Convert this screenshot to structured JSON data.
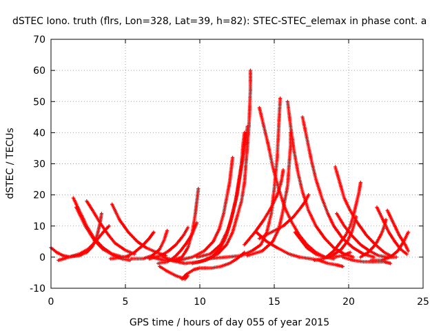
{
  "chart_data": {
    "type": "scatter",
    "title": "dSTEC Iono. truth (flrs, Lon=328, Lat=39, h=82): STEC-STEC_elemax in phase cont. a",
    "xlabel": "GPS time / hours of day 055 of year 2015",
    "ylabel": "dSTEC  / TECUs",
    "xlim": [
      0,
      25
    ],
    "ylim": [
      -10,
      70
    ],
    "xticks": [
      0,
      5,
      10,
      15,
      20,
      25
    ],
    "yticks": [
      -10,
      0,
      10,
      20,
      30,
      40,
      50,
      60,
      70
    ],
    "grid": true,
    "marker": "+",
    "color": "#ff0000",
    "series": [
      {
        "points": [
          [
            0,
            3
          ],
          [
            0.4,
            1.5
          ],
          [
            0.8,
            0.5
          ],
          [
            1.2,
            0.1
          ],
          [
            1.6,
            0.3
          ],
          [
            2.0,
            0.6
          ]
        ]
      },
      {
        "points": [
          [
            1.5,
            19
          ],
          [
            1.9,
            15
          ],
          [
            2.4,
            10
          ],
          [
            2.9,
            6
          ],
          [
            3.5,
            3
          ],
          [
            4.1,
            1
          ],
          [
            4.7,
            0.2
          ],
          [
            5.2,
            0
          ]
        ]
      },
      {
        "points": [
          [
            2.4,
            18
          ],
          [
            2.8,
            15
          ],
          [
            3.3,
            11
          ],
          [
            3.8,
            7.5
          ],
          [
            4.3,
            4.5
          ],
          [
            5.0,
            2.2
          ],
          [
            5.6,
            1
          ]
        ]
      },
      {
        "points": [
          [
            4.1,
            17
          ],
          [
            4.6,
            12
          ],
          [
            5.2,
            8
          ],
          [
            5.8,
            5
          ],
          [
            6.4,
            3
          ],
          [
            7.1,
            1.5
          ],
          [
            7.7,
            0.5
          ]
        ]
      },
      {
        "points": [
          [
            1.7,
            16
          ],
          [
            2.3,
            10
          ],
          [
            2.9,
            5.5
          ],
          [
            3.5,
            2.5
          ],
          [
            4.2,
            0.6
          ],
          [
            4.8,
            -0.6
          ],
          [
            5.3,
            -1
          ]
        ]
      },
      {
        "points": [
          [
            0.5,
            -1
          ],
          [
            1.2,
            0
          ],
          [
            1.9,
            1
          ],
          [
            2.5,
            2.6
          ],
          [
            3.0,
            5
          ],
          [
            3.5,
            8
          ],
          [
            3.9,
            10
          ]
        ]
      },
      {
        "points": [
          [
            1.8,
            0.5
          ],
          [
            2.4,
            1.5
          ],
          [
            2.8,
            3.5
          ],
          [
            3.1,
            7
          ],
          [
            3.3,
            11
          ],
          [
            3.4,
            14
          ]
        ]
      },
      {
        "points": [
          [
            4.0,
            -0.5
          ],
          [
            5.0,
            0
          ],
          [
            5.6,
            1.5
          ],
          [
            6.1,
            3.5
          ],
          [
            6.6,
            6
          ],
          [
            6.9,
            8
          ]
        ]
      },
      {
        "points": [
          [
            5.4,
            -0.5
          ],
          [
            6.2,
            -0.5
          ],
          [
            6.8,
            0.5
          ],
          [
            7.3,
            2.5
          ],
          [
            7.6,
            5.5
          ],
          [
            7.8,
            8.5
          ]
        ]
      },
      {
        "points": [
          [
            6.6,
            -0.5
          ],
          [
            7.4,
            0.5
          ],
          [
            7.9,
            2
          ],
          [
            8.4,
            4
          ],
          [
            8.9,
            7
          ],
          [
            9.2,
            9.5
          ]
        ]
      },
      {
        "points": [
          [
            7.2,
            -2
          ],
          [
            7.8,
            -1.5
          ],
          [
            8.3,
            0
          ],
          [
            8.7,
            2
          ],
          [
            9.1,
            4.5
          ],
          [
            9.5,
            7.5
          ],
          [
            9.8,
            11
          ]
        ]
      },
      {
        "points": [
          [
            7.5,
            0
          ],
          [
            8.2,
            -1
          ],
          [
            8.8,
            0
          ],
          [
            9.2,
            3
          ],
          [
            9.5,
            8
          ],
          [
            9.7,
            14
          ],
          [
            9.8,
            18
          ],
          [
            9.9,
            22
          ]
        ]
      },
      {
        "points": [
          [
            7.3,
            -3
          ],
          [
            7.8,
            -4.5
          ],
          [
            8.4,
            -6
          ],
          [
            9.0,
            -7
          ],
          [
            9.2,
            -6
          ]
        ]
      },
      {
        "points": [
          [
            8.8,
            -7
          ],
          [
            9.1,
            -5.5
          ],
          [
            9.6,
            -4
          ],
          [
            10.0,
            -3.5
          ],
          [
            10.8,
            -3.5
          ],
          [
            11.4,
            -3
          ],
          [
            12.0,
            -2
          ],
          [
            12.5,
            -0.5
          ],
          [
            13.0,
            1.5
          ]
        ]
      },
      {
        "points": [
          [
            6.8,
            0
          ],
          [
            7.6,
            -1
          ],
          [
            8.6,
            -1
          ],
          [
            9.5,
            0
          ],
          [
            10.3,
            2
          ],
          [
            10.9,
            5
          ],
          [
            11.3,
            9
          ],
          [
            11.6,
            14
          ],
          [
            11.8,
            19
          ],
          [
            12.0,
            24
          ],
          [
            12.1,
            28
          ],
          [
            12.2,
            32
          ]
        ]
      },
      {
        "points": [
          [
            8.0,
            -1
          ],
          [
            9.0,
            -2
          ],
          [
            10.0,
            -1.5
          ],
          [
            10.8,
            0
          ],
          [
            11.4,
            3
          ],
          [
            11.8,
            7
          ],
          [
            12.1,
            12
          ],
          [
            12.4,
            18
          ],
          [
            12.6,
            24
          ],
          [
            12.8,
            30
          ],
          [
            12.9,
            36
          ],
          [
            13.0,
            40
          ]
        ]
      },
      {
        "points": [
          [
            9.5,
            -2
          ],
          [
            10.4,
            -1
          ],
          [
            11.2,
            1
          ],
          [
            11.8,
            4
          ],
          [
            12.2,
            8
          ],
          [
            12.5,
            13
          ],
          [
            12.8,
            18
          ],
          [
            13.0,
            24
          ],
          [
            13.1,
            30
          ],
          [
            13.2,
            36
          ],
          [
            13.3,
            42
          ],
          [
            13.35,
            48
          ],
          [
            13.4,
            54
          ],
          [
            13.4,
            60
          ]
        ]
      },
      {
        "points": [
          [
            9.8,
            0
          ],
          [
            10.7,
            1
          ],
          [
            11.4,
            4
          ],
          [
            11.9,
            9
          ],
          [
            12.2,
            14
          ],
          [
            12.5,
            20
          ],
          [
            12.7,
            26
          ],
          [
            12.9,
            32
          ],
          [
            13.1,
            38
          ],
          [
            13.2,
            42
          ]
        ]
      },
      {
        "points": [
          [
            14.0,
            48
          ],
          [
            14.3,
            42
          ],
          [
            14.6,
            36
          ],
          [
            14.9,
            29
          ],
          [
            15.3,
            22
          ],
          [
            15.7,
            16
          ],
          [
            16.2,
            11
          ],
          [
            16.7,
            7
          ],
          [
            17.2,
            4
          ],
          [
            17.8,
            1.5
          ],
          [
            18.4,
            0
          ],
          [
            19.0,
            -0.5
          ]
        ]
      },
      {
        "points": [
          [
            10.5,
            -0.5
          ],
          [
            11.8,
            0
          ],
          [
            12.8,
            0.5
          ],
          [
            13.5,
            2
          ],
          [
            14.1,
            4
          ],
          [
            14.5,
            8
          ],
          [
            14.8,
            14
          ],
          [
            15.0,
            22
          ],
          [
            15.2,
            32
          ],
          [
            15.3,
            42
          ],
          [
            15.4,
            51
          ]
        ]
      },
      {
        "points": [
          [
            15.9,
            50
          ],
          [
            16.1,
            42
          ],
          [
            16.3,
            35
          ],
          [
            16.6,
            27
          ],
          [
            16.9,
            21
          ],
          [
            17.3,
            15
          ],
          [
            17.8,
            10
          ],
          [
            18.4,
            6
          ],
          [
            19.0,
            3
          ],
          [
            19.7,
            1
          ],
          [
            20.3,
            0
          ]
        ]
      },
      {
        "points": [
          [
            13.2,
            0.5
          ],
          [
            14.2,
            2
          ],
          [
            14.9,
            5
          ],
          [
            15.3,
            9
          ],
          [
            15.5,
            13
          ],
          [
            15.7,
            18
          ],
          [
            15.9,
            23
          ],
          [
            16.0,
            30
          ],
          [
            16.1,
            36
          ],
          [
            16.1,
            40
          ]
        ]
      },
      {
        "points": [
          [
            16.9,
            45
          ],
          [
            17.2,
            38
          ],
          [
            17.5,
            31
          ],
          [
            17.8,
            25
          ],
          [
            18.2,
            19
          ],
          [
            18.6,
            14
          ],
          [
            19.0,
            10
          ],
          [
            19.6,
            6
          ],
          [
            20.3,
            3
          ],
          [
            21.0,
            1
          ],
          [
            21.7,
            0
          ]
        ]
      },
      {
        "points": [
          [
            13.0,
            4
          ],
          [
            13.7,
            8
          ],
          [
            14.3,
            12
          ],
          [
            14.8,
            16
          ],
          [
            15.2,
            20
          ],
          [
            15.4,
            23
          ],
          [
            15.5,
            25
          ],
          [
            15.6,
            28
          ]
        ]
      },
      {
        "points": [
          [
            14.0,
            6
          ],
          [
            14.8,
            8
          ],
          [
            15.6,
            10
          ],
          [
            16.3,
            13
          ],
          [
            16.8,
            16
          ],
          [
            17.1,
            18
          ],
          [
            17.3,
            20
          ]
        ]
      },
      {
        "points": [
          [
            13.8,
            8
          ],
          [
            14.5,
            5
          ],
          [
            15.2,
            3
          ],
          [
            16.0,
            1
          ],
          [
            16.7,
            0
          ],
          [
            17.4,
            -0.5
          ],
          [
            18.0,
            -1
          ],
          [
            18.6,
            -2
          ],
          [
            19.2,
            -2.5
          ],
          [
            19.6,
            -3
          ]
        ]
      },
      {
        "points": [
          [
            16.4,
            8
          ],
          [
            16.8,
            5.5
          ],
          [
            17.2,
            3
          ],
          [
            17.8,
            1
          ],
          [
            18.4,
            0
          ],
          [
            19.0,
            0
          ],
          [
            19.6,
            0.5
          ],
          [
            20.1,
            1.5
          ]
        ]
      },
      {
        "points": [
          [
            18.5,
            0
          ],
          [
            19.0,
            2
          ],
          [
            19.4,
            4.5
          ],
          [
            19.8,
            7
          ],
          [
            20.1,
            10
          ],
          [
            20.3,
            13
          ],
          [
            20.5,
            17
          ],
          [
            20.7,
            21
          ],
          [
            20.8,
            24
          ]
        ]
      },
      {
        "points": [
          [
            19.1,
            29
          ],
          [
            19.4,
            24
          ],
          [
            19.7,
            19
          ],
          [
            20.1,
            15
          ],
          [
            20.6,
            11
          ],
          [
            21.2,
            7
          ],
          [
            21.8,
            4
          ],
          [
            22.4,
            1.5
          ],
          [
            23.0,
            0
          ]
        ]
      },
      {
        "points": [
          [
            17.7,
            -1
          ],
          [
            18.3,
            -0.5
          ],
          [
            18.9,
            0.5
          ],
          [
            19.5,
            2.5
          ],
          [
            19.9,
            5
          ],
          [
            20.2,
            8
          ],
          [
            20.4,
            11
          ],
          [
            20.5,
            13
          ]
        ]
      },
      {
        "points": [
          [
            19.2,
            14
          ],
          [
            19.7,
            10
          ],
          [
            20.2,
            7
          ],
          [
            20.8,
            4
          ],
          [
            21.4,
            2
          ],
          [
            22.0,
            0.5
          ],
          [
            22.6,
            0
          ],
          [
            23.2,
            0
          ]
        ]
      },
      {
        "points": [
          [
            19.6,
            0
          ],
          [
            20.3,
            -1
          ],
          [
            21.0,
            -1.5
          ],
          [
            21.7,
            -1.5
          ],
          [
            22.4,
            -1.5
          ],
          [
            22.8,
            -2
          ]
        ]
      },
      {
        "points": [
          [
            21.9,
            16
          ],
          [
            22.3,
            12
          ],
          [
            22.7,
            8
          ],
          [
            23.1,
            5
          ],
          [
            23.5,
            2.5
          ],
          [
            23.9,
            1
          ]
        ]
      },
      {
        "points": [
          [
            22.6,
            15
          ],
          [
            23.0,
            11
          ],
          [
            23.4,
            7
          ],
          [
            23.8,
            4
          ],
          [
            24.0,
            2
          ]
        ]
      },
      {
        "points": [
          [
            20.8,
            0
          ],
          [
            21.3,
            1.5
          ],
          [
            21.8,
            4
          ],
          [
            22.2,
            7.5
          ],
          [
            22.4,
            10
          ],
          [
            22.5,
            12
          ]
        ]
      },
      {
        "points": [
          [
            21.5,
            -1
          ],
          [
            22.2,
            -1
          ],
          [
            22.8,
            0
          ],
          [
            23.3,
            2
          ],
          [
            23.7,
            5
          ],
          [
            24.0,
            8
          ]
        ]
      }
    ]
  }
}
